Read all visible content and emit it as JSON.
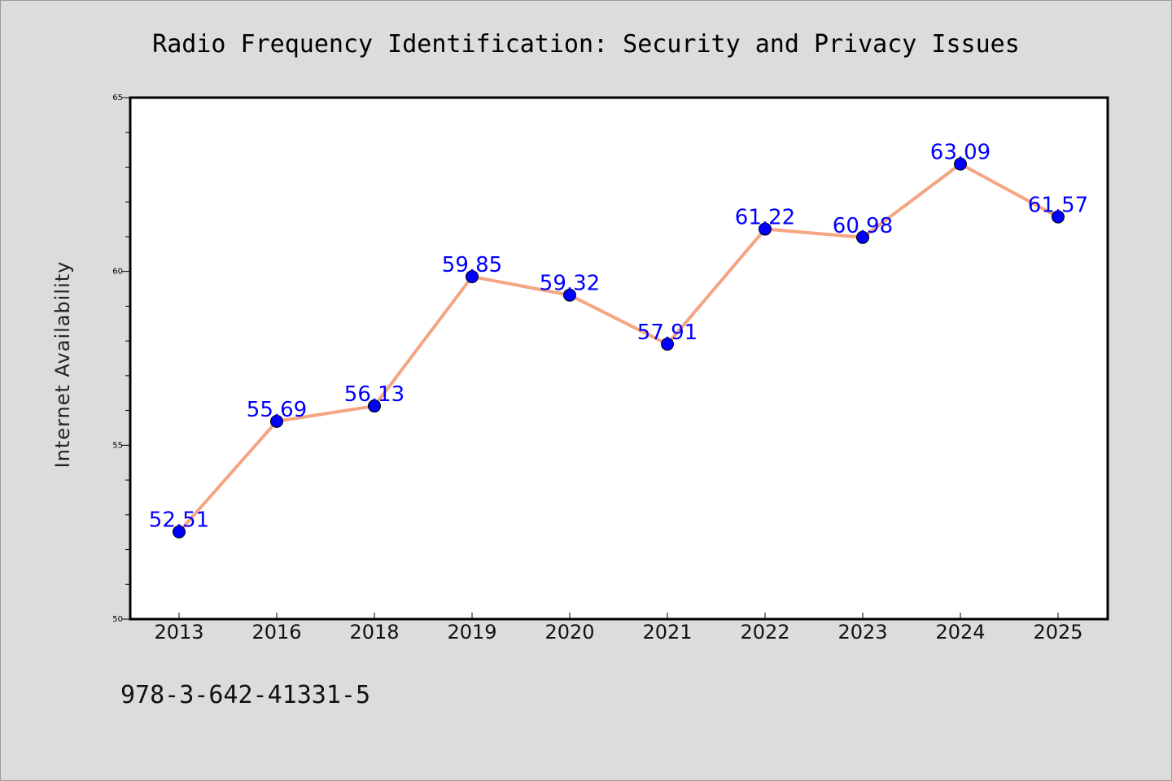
{
  "footer": "978-3-642-41331-5",
  "chart_data": {
    "type": "line",
    "title": "Radio Frequency Identification: Security and Privacy Issues",
    "xlabel": "",
    "ylabel": "Internet Availability",
    "categories": [
      "2013",
      "2016",
      "2018",
      "2019",
      "2020",
      "2021",
      "2022",
      "2023",
      "2024",
      "2025"
    ],
    "series": [
      {
        "values": [
          52.51,
          55.69,
          56.13,
          59.85,
          59.32,
          57.91,
          61.22,
          60.98,
          63.09,
          61.57
        ],
        "data_labels": [
          "52.51",
          "55.69",
          "56.13",
          "59.85",
          "59.32",
          "57.91",
          "61.22",
          "60.98",
          "63.09",
          "61.57"
        ],
        "line_color": "#f4a582",
        "marker_color": "#0000ff"
      }
    ],
    "ylim": [
      50,
      65
    ],
    "yticks": [
      "50",
      "55",
      "60",
      "65"
    ],
    "grid": false,
    "legend": "none"
  }
}
